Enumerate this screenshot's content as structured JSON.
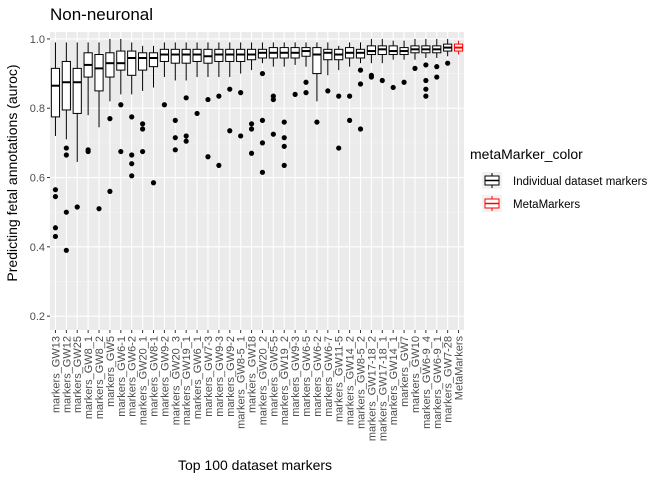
{
  "chart_data": {
    "type": "boxplot",
    "title": "Non-neuronal",
    "xlabel": "Top 100 dataset markers",
    "ylabel": "Predicting fetal annotations (auroc)",
    "ylim": [
      0.16,
      1.02
    ],
    "yticks": [
      0.2,
      0.4,
      0.6,
      0.8,
      1.0
    ],
    "ytick_labels": [
      "0.2",
      "0.4",
      "0.6",
      "0.8",
      "1.0"
    ],
    "grid": true,
    "legend": {
      "title": "metaMarker_color",
      "position": "right",
      "entries": [
        {
          "label": "Individual dataset markers",
          "color": "#000000"
        },
        {
          "label": "MetaMarkers",
          "color": "#ff0000"
        }
      ]
    },
    "categories": [
      "markers_GW13",
      "markers_GW12",
      "markers_GW25",
      "markers_GW8_1",
      "markers_GW8_2",
      "markers_GW5",
      "markers_GW6-1",
      "markers_GW6-2",
      "markers_GW20_1",
      "markers_GW8-1",
      "markers_GW9-2",
      "markers_GW20_3",
      "markers_GW19_1",
      "markers_GW6_1",
      "markers_GW7-3",
      "markers_GW9-3",
      "markers_GW9-2",
      "markers_GW8-5_1",
      "markers_GW18",
      "markers_GW20_2",
      "markers_GW5-5",
      "markers_GW19_2",
      "markers_GW9-3",
      "markers_GW6-5",
      "markers_GW6-2",
      "markers_GW6-7",
      "markers_GW11-5",
      "markers_GW14_2",
      "markers_GW8-5_2",
      "markers_GW17-18_2",
      "markers_GW17-18_1",
      "markers_GW14_1",
      "markers_GW7",
      "markers_GW10",
      "markers_GW6-9_4",
      "markers_GW6-9_1",
      "markers_GW7-28",
      "MetaMarkers"
    ],
    "series": [
      {
        "name": "Individual dataset markers",
        "color": "#000000",
        "boxes": [
          {
            "whisker_low": 0.72,
            "q1": 0.775,
            "median": 0.865,
            "q3": 0.915,
            "whisker_high": 0.99,
            "outliers": [
              0.565,
              0.545,
              0.455,
              0.43
            ]
          },
          {
            "whisker_low": 0.71,
            "q1": 0.795,
            "median": 0.875,
            "q3": 0.935,
            "whisker_high": 0.99,
            "outliers": [
              0.685,
              0.665,
              0.5,
              0.39
            ]
          },
          {
            "whisker_low": 0.645,
            "q1": 0.785,
            "median": 0.875,
            "q3": 0.915,
            "whisker_high": 0.99,
            "outliers": [
              0.515
            ]
          },
          {
            "whisker_low": 0.78,
            "q1": 0.89,
            "median": 0.925,
            "q3": 0.96,
            "whisker_high": 0.99,
            "outliers": [
              0.68,
              0.675
            ]
          },
          {
            "whisker_low": 0.745,
            "q1": 0.85,
            "median": 0.915,
            "q3": 0.955,
            "whisker_high": 0.99,
            "outliers": [
              0.51
            ]
          },
          {
            "whisker_low": 0.82,
            "q1": 0.89,
            "median": 0.93,
            "q3": 0.96,
            "whisker_high": 1.0,
            "outliers": [
              0.77,
              0.56
            ]
          },
          {
            "whisker_low": 0.84,
            "q1": 0.91,
            "median": 0.93,
            "q3": 0.965,
            "whisker_high": 1.0,
            "outliers": [
              0.81,
              0.675
            ]
          },
          {
            "whisker_low": 0.84,
            "q1": 0.895,
            "median": 0.945,
            "q3": 0.965,
            "whisker_high": 0.99,
            "outliers": [
              0.775,
              0.665,
              0.64,
              0.605
            ]
          },
          {
            "whisker_low": 0.85,
            "q1": 0.91,
            "median": 0.945,
            "q3": 0.96,
            "whisker_high": 0.98,
            "outliers": [
              0.755,
              0.74,
              0.675
            ]
          },
          {
            "whisker_low": 0.86,
            "q1": 0.92,
            "median": 0.945,
            "q3": 0.96,
            "whisker_high": 0.98,
            "outliers": [
              0.585
            ]
          },
          {
            "whisker_low": 0.89,
            "q1": 0.935,
            "median": 0.955,
            "q3": 0.97,
            "whisker_high": 0.99,
            "outliers": [
              0.81
            ]
          },
          {
            "whisker_low": 0.88,
            "q1": 0.93,
            "median": 0.955,
            "q3": 0.97,
            "whisker_high": 0.99,
            "outliers": [
              0.765,
              0.715,
              0.68
            ]
          },
          {
            "whisker_low": 0.88,
            "q1": 0.93,
            "median": 0.955,
            "q3": 0.97,
            "whisker_high": 0.99,
            "outliers": [
              0.83,
              0.72,
              0.705
            ]
          },
          {
            "whisker_low": 0.89,
            "q1": 0.935,
            "median": 0.955,
            "q3": 0.97,
            "whisker_high": 0.99,
            "outliers": [
              0.785
            ]
          },
          {
            "whisker_low": 0.89,
            "q1": 0.93,
            "median": 0.95,
            "q3": 0.97,
            "whisker_high": 0.99,
            "outliers": [
              0.825,
              0.66
            ]
          },
          {
            "whisker_low": 0.89,
            "q1": 0.935,
            "median": 0.955,
            "q3": 0.97,
            "whisker_high": 0.99,
            "outliers": [
              0.835,
              0.635
            ]
          },
          {
            "whisker_low": 0.89,
            "q1": 0.935,
            "median": 0.955,
            "q3": 0.97,
            "whisker_high": 0.99,
            "outliers": [
              0.855,
              0.735
            ]
          },
          {
            "whisker_low": 0.9,
            "q1": 0.935,
            "median": 0.955,
            "q3": 0.97,
            "whisker_high": 0.99,
            "outliers": [
              0.845,
              0.72
            ]
          },
          {
            "whisker_low": 0.91,
            "q1": 0.94,
            "median": 0.955,
            "q3": 0.97,
            "whisker_high": 0.99,
            "outliers": [
              0.755,
              0.74,
              0.67
            ]
          },
          {
            "whisker_low": 0.93,
            "q1": 0.945,
            "median": 0.96,
            "q3": 0.97,
            "whisker_high": 0.99,
            "outliers": [
              0.9,
              0.765,
              0.7,
              0.615
            ]
          },
          {
            "whisker_low": 0.92,
            "q1": 0.945,
            "median": 0.96,
            "q3": 0.975,
            "whisker_high": 0.99,
            "outliers": [
              0.835,
              0.825,
              0.725
            ]
          },
          {
            "whisker_low": 0.92,
            "q1": 0.945,
            "median": 0.96,
            "q3": 0.975,
            "whisker_high": 0.99,
            "outliers": [
              0.76,
              0.715,
              0.69,
              0.635
            ]
          },
          {
            "whisker_low": 0.925,
            "q1": 0.945,
            "median": 0.96,
            "q3": 0.975,
            "whisker_high": 0.99,
            "outliers": [
              0.84
            ]
          },
          {
            "whisker_low": 0.92,
            "q1": 0.95,
            "median": 0.965,
            "q3": 0.975,
            "whisker_high": 0.99,
            "outliers": [
              0.875,
              0.845
            ]
          },
          {
            "whisker_low": 0.82,
            "q1": 0.9,
            "median": 0.955,
            "q3": 0.975,
            "whisker_high": 0.99,
            "outliers": [
              0.76
            ]
          },
          {
            "whisker_low": 0.895,
            "q1": 0.94,
            "median": 0.96,
            "q3": 0.97,
            "whisker_high": 0.99,
            "outliers": [
              0.85
            ]
          },
          {
            "whisker_low": 0.91,
            "q1": 0.94,
            "median": 0.955,
            "q3": 0.97,
            "whisker_high": 0.98,
            "outliers": [
              0.835,
              0.685
            ]
          },
          {
            "whisker_low": 0.92,
            "q1": 0.945,
            "median": 0.96,
            "q3": 0.975,
            "whisker_high": 0.99,
            "outliers": [
              0.835,
              0.765
            ]
          },
          {
            "whisker_low": 0.93,
            "q1": 0.945,
            "median": 0.96,
            "q3": 0.97,
            "whisker_high": 0.99,
            "outliers": [
              0.91,
              0.87,
              0.74
            ]
          },
          {
            "whisker_low": 0.93,
            "q1": 0.955,
            "median": 0.965,
            "q3": 0.98,
            "whisker_high": 1.0,
            "outliers": [
              0.895,
              0.89
            ]
          },
          {
            "whisker_low": 0.93,
            "q1": 0.955,
            "median": 0.97,
            "q3": 0.98,
            "whisker_high": 1.0,
            "outliers": [
              0.88
            ]
          },
          {
            "whisker_low": 0.94,
            "q1": 0.955,
            "median": 0.965,
            "q3": 0.98,
            "whisker_high": 0.995,
            "outliers": [
              0.86
            ]
          },
          {
            "whisker_low": 0.94,
            "q1": 0.955,
            "median": 0.965,
            "q3": 0.975,
            "whisker_high": 0.995,
            "outliers": [
              0.875
            ]
          },
          {
            "whisker_low": 0.94,
            "q1": 0.96,
            "median": 0.97,
            "q3": 0.98,
            "whisker_high": 1.0,
            "outliers": [
              0.915
            ]
          },
          {
            "whisker_low": 0.945,
            "q1": 0.96,
            "median": 0.97,
            "q3": 0.98,
            "whisker_high": 1.0,
            "outliers": [
              0.925,
              0.88,
              0.855,
              0.835
            ]
          },
          {
            "whisker_low": 0.945,
            "q1": 0.96,
            "median": 0.97,
            "q3": 0.98,
            "whisker_high": 1.0,
            "outliers": [
              0.92,
              0.89
            ]
          },
          {
            "whisker_low": 0.95,
            "q1": 0.965,
            "median": 0.975,
            "q3": 0.985,
            "whisker_high": 1.0,
            "outliers": [
              0.93
            ]
          },
          null
        ]
      },
      {
        "name": "MetaMarkers",
        "color": "#ff0000",
        "boxes": [
          null,
          null,
          null,
          null,
          null,
          null,
          null,
          null,
          null,
          null,
          null,
          null,
          null,
          null,
          null,
          null,
          null,
          null,
          null,
          null,
          null,
          null,
          null,
          null,
          null,
          null,
          null,
          null,
          null,
          null,
          null,
          null,
          null,
          null,
          null,
          null,
          null,
          {
            "whisker_low": 0.955,
            "q1": 0.965,
            "median": 0.975,
            "q3": 0.985,
            "whisker_high": 0.995,
            "outliers": []
          }
        ]
      }
    ]
  }
}
